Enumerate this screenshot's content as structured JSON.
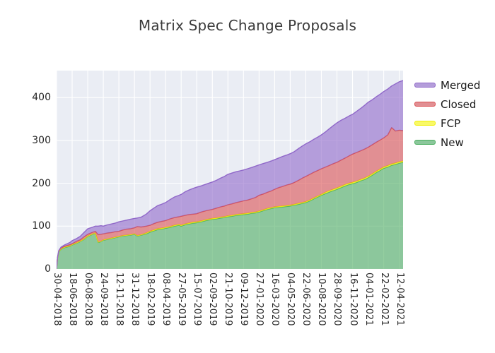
{
  "title": "Matrix Spec Change Proposals",
  "colors": {
    "figure_background": "#ffffff",
    "plot_background": "#eaedf4",
    "gridline": "#ffffff",
    "title_text": "#3a3a3a",
    "tick_text": "#262626",
    "legend_text": "#1a1a1a"
  },
  "y_axis": {
    "tick_labels": [
      "0",
      "100",
      "200",
      "300",
      "400"
    ],
    "tick_values": [
      0,
      100,
      200,
      300,
      400
    ]
  },
  "x_axis": {
    "tick_labels": [
      "30-04-2018",
      "18-06-2018",
      "06-08-2018",
      "24-09-2018",
      "12-11-2018",
      "31-12-2018",
      "18-02-2019",
      "08-04-2019",
      "27-05-2019",
      "15-07-2019",
      "02-09-2019",
      "21-10-2019",
      "09-12-2019",
      "27-01-2020",
      "16-03-2020",
      "04-05-2020",
      "22-06-2020",
      "10-08-2020",
      "28-09-2020",
      "16-11-2020",
      "04-01-2021",
      "22-02-2021",
      "12-04-2021"
    ],
    "tick_interval_days": 49,
    "max_day": 1090
  },
  "legend_order": [
    "Merged",
    "Closed",
    "FCP",
    "New"
  ],
  "chart_data": {
    "type": "area",
    "stacked": true,
    "title": "Matrix Spec Change Proposals",
    "xlabel": "",
    "ylabel": "",
    "ylim": [
      0,
      463
    ],
    "grid": true,
    "legend_position": "outside upper right",
    "x_unit": "days since 30-04-2018",
    "x_days": [
      0,
      3,
      7,
      14,
      25,
      42,
      49,
      63,
      74,
      86,
      98,
      111,
      122,
      131,
      140,
      147,
      160,
      172,
      184,
      196,
      208,
      220,
      232,
      245,
      254,
      266,
      282,
      294,
      306,
      318,
      330,
      343,
      357,
      371,
      385,
      392,
      404,
      416,
      429,
      441,
      455,
      470,
      490,
      503,
      516,
      528,
      539,
      552,
      565,
      577,
      588,
      601,
      614,
      626,
      637,
      650,
      663,
      675,
      686,
      699,
      712,
      724,
      735,
      748,
      761,
      773,
      784,
      797,
      810,
      822,
      833,
      846,
      859,
      871,
      882,
      895,
      908,
      920,
      931,
      944,
      957,
      969,
      980,
      993,
      1006,
      1018,
      1029,
      1042,
      1054,
      1066,
      1078,
      1090
    ],
    "series": [
      {
        "name": "New",
        "color": "#4cae60",
        "fill": "rgba(76,174,96,0.6)",
        "legend_fill": "#8bc79b",
        "values": [
          0,
          25,
          40,
          46,
          50,
          53,
          56,
          60,
          64,
          69,
          76,
          80,
          83,
          62,
          64,
          67,
          69,
          71,
          73,
          75,
          77,
          78,
          79,
          81,
          77,
          79,
          82,
          86,
          89,
          92,
          93,
          95,
          97,
          100,
          102,
          100,
          103,
          105,
          107,
          108,
          110,
          113,
          116,
          117,
          119,
          120,
          122,
          123,
          125,
          126,
          127,
          128,
          130,
          131,
          133,
          136,
          139,
          141,
          143,
          144,
          145,
          146,
          147,
          149,
          151,
          153,
          155,
          159,
          164,
          168,
          172,
          176,
          180,
          183,
          186,
          190,
          194,
          197,
          199,
          202,
          206,
          209,
          213,
          219,
          225,
          230,
          235,
          238,
          242,
          244,
          247,
          249
        ]
      },
      {
        "name": "FCP",
        "color": "#f0f00a",
        "fill": "rgba(255,255,10,0.6)",
        "legend_fill": "#f9f967",
        "values": [
          0,
          0,
          1,
          1,
          1,
          1,
          1,
          1,
          1,
          1,
          1,
          1,
          1,
          1,
          1,
          1,
          1,
          1,
          1,
          1,
          1,
          1,
          1,
          1,
          1,
          1,
          2,
          2,
          2,
          2,
          2,
          2,
          2,
          2,
          2,
          2,
          2,
          2,
          2,
          2,
          2,
          2,
          2,
          2,
          2,
          2,
          2,
          2,
          2,
          2,
          2,
          2,
          2,
          2,
          2,
          2,
          2,
          2,
          2,
          2,
          2,
          2,
          2,
          2,
          2,
          2,
          2,
          2,
          2,
          2,
          2,
          3,
          3,
          3,
          3,
          3,
          3,
          3,
          3,
          3,
          3,
          3,
          3,
          3,
          3,
          3,
          3,
          3,
          3,
          3,
          3,
          3
        ]
      },
      {
        "name": "Closed",
        "color": "#db5052",
        "fill": "rgba(219,80,82,0.6)",
        "legend_fill": "#e18f93",
        "values": [
          0,
          1,
          1,
          2,
          2,
          3,
          2,
          4,
          3,
          5,
          4,
          4,
          4,
          17,
          16,
          14,
          14,
          13,
          13,
          12,
          13,
          14,
          14,
          14,
          21,
          18,
          16,
          14,
          15,
          15,
          16,
          16,
          18,
          18,
          18,
          21,
          20,
          20,
          19,
          19,
          21,
          21,
          21,
          23,
          24,
          25,
          26,
          27,
          28,
          29,
          30,
          31,
          32,
          34,
          37,
          37,
          38,
          39,
          41,
          44,
          46,
          48,
          49,
          51,
          54,
          57,
          59,
          60,
          60,
          60,
          60,
          59,
          59,
          60,
          60,
          61,
          62,
          64,
          66,
          67,
          67,
          68,
          68,
          68,
          68,
          68,
          68,
          72,
          85,
          75,
          74,
          71
        ]
      },
      {
        "name": "Merged",
        "color": "#9068c9",
        "fill": "rgba(144,104,201,0.6)",
        "legend_fill": "#b49dda",
        "values": [
          0,
          1,
          1,
          2,
          3,
          5,
          7,
          6,
          8,
          10,
          13,
          12,
          12,
          20,
          20,
          18,
          19,
          20,
          20,
          22,
          21,
          21,
          22,
          22,
          20,
          23,
          28,
          34,
          36,
          39,
          40,
          42,
          45,
          48,
          50,
          51,
          55,
          57,
          60,
          62,
          61,
          62,
          64,
          65,
          67,
          69,
          71,
          72,
          72,
          72,
          72,
          73,
          73,
          73,
          71,
          71,
          70,
          70,
          69,
          69,
          70,
          70,
          71,
          72,
          74,
          75,
          76,
          76,
          77,
          78,
          79,
          82,
          86,
          89,
          92,
          93,
          93,
          93,
          93,
          96,
          99,
          102,
          105,
          105,
          106,
          107,
          108,
          107,
          97,
          110,
          113,
          117
        ]
      }
    ]
  }
}
